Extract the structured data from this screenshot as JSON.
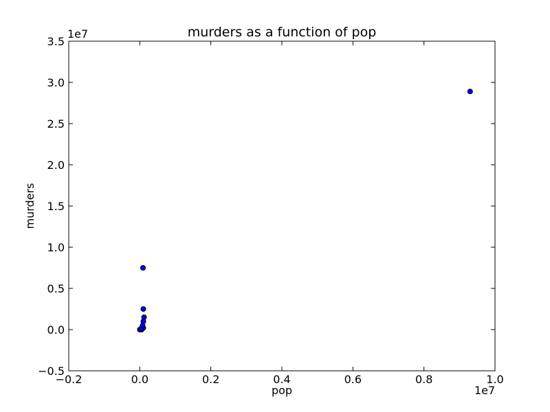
{
  "chart_data": {
    "type": "scatter",
    "title": "murders as a function of pop",
    "xlabel": "pop",
    "ylabel": "murders",
    "x_scale_label": "1e7",
    "y_scale_label": "1e7",
    "xlim": [
      -0.2,
      1.0
    ],
    "ylim": [
      -0.5,
      3.5
    ],
    "x_ticks": [
      -0.2,
      0.0,
      0.2,
      0.4,
      0.6,
      0.8,
      1.0
    ],
    "x_tick_labels": [
      "−0.2",
      "0.0",
      "0.2",
      "0.4",
      "0.6",
      "0.8",
      "1.0"
    ],
    "y_ticks": [
      -0.5,
      0.0,
      0.5,
      1.0,
      1.5,
      2.0,
      2.5,
      3.0,
      3.5
    ],
    "y_tick_labels": [
      "−0.5",
      "0.0",
      "0.5",
      "1.0",
      "1.5",
      "2.0",
      "2.5",
      "3.0",
      "3.5"
    ],
    "grid": false,
    "marker_color": "#0000ff",
    "marker_edge_color": "#000000",
    "points": [
      {
        "x": 0.0,
        "y": 0.0
      },
      {
        "x": 0.005,
        "y": 0.0
      },
      {
        "x": 0.01,
        "y": 0.02
      },
      {
        "x": 0.003,
        "y": 0.01
      },
      {
        "x": 0.008,
        "y": 0.05
      },
      {
        "x": 0.01,
        "y": 0.1
      },
      {
        "x": 0.012,
        "y": 0.15
      },
      {
        "x": 0.01,
        "y": 0.25
      },
      {
        "x": 0.009,
        "y": 0.75
      },
      {
        "x": 0.93,
        "y": 2.89
      }
    ]
  }
}
